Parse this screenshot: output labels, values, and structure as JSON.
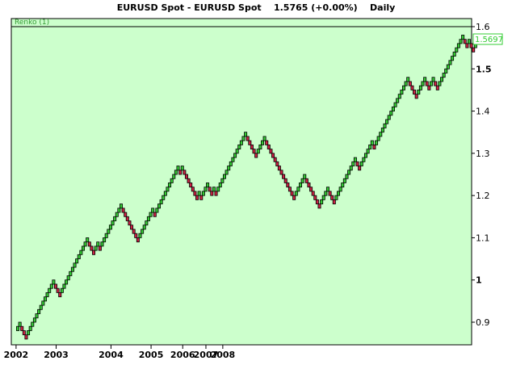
{
  "header": {
    "instrument": "EURUSD Spot - EURUSD Spot",
    "last_value": "1.5765 (+0.00%)",
    "period": "Daily"
  },
  "colors": {
    "plot_background": "#ccffcc",
    "up_brick": "#33cc33",
    "down_brick": "#cc2244",
    "brick_outline": "#000000",
    "last_price_label": "#33cc33"
  },
  "chart_data": {
    "type": "renko",
    "indicator_label": "Renko (1)",
    "brick_size": 0.01,
    "last_price_label": "1.5697",
    "ylim": [
      0.84,
      1.6
    ],
    "y_ticks": [
      {
        "value": 1.6,
        "label": "1.6"
      },
      {
        "value": 1.5,
        "label": "1.5"
      },
      {
        "value": 1.4,
        "label": "1.4"
      },
      {
        "value": 1.3,
        "label": "1.3"
      },
      {
        "value": 1.2,
        "label": "1.2"
      },
      {
        "value": 1.1,
        "label": "1.1"
      },
      {
        "value": 1.0,
        "label": "1"
      },
      {
        "value": 0.9,
        "label": "0.9"
      }
    ],
    "x_ticks": [
      {
        "brick": 0,
        "label": "2002"
      },
      {
        "brick": 19,
        "label": "2003"
      },
      {
        "brick": 45,
        "label": "2004"
      },
      {
        "brick": 64,
        "label": "2005"
      },
      {
        "brick": 79,
        "label": "2006"
      },
      {
        "brick": 90,
        "label": "2007"
      },
      {
        "brick": 98,
        "label": "2008"
      }
    ],
    "bricks": [
      {
        "y": 0.89,
        "dir": "up"
      },
      {
        "y": 0.9,
        "dir": "up"
      },
      {
        "y": 0.89,
        "dir": "down"
      },
      {
        "y": 0.88,
        "dir": "down"
      },
      {
        "y": 0.87,
        "dir": "down"
      },
      {
        "y": 0.88,
        "dir": "up"
      },
      {
        "y": 0.89,
        "dir": "up"
      },
      {
        "y": 0.9,
        "dir": "up"
      },
      {
        "y": 0.91,
        "dir": "up"
      },
      {
        "y": 0.92,
        "dir": "up"
      },
      {
        "y": 0.93,
        "dir": "up"
      },
      {
        "y": 0.94,
        "dir": "up"
      },
      {
        "y": 0.95,
        "dir": "up"
      },
      {
        "y": 0.96,
        "dir": "up"
      },
      {
        "y": 0.97,
        "dir": "up"
      },
      {
        "y": 0.98,
        "dir": "up"
      },
      {
        "y": 0.99,
        "dir": "up"
      },
      {
        "y": 1.0,
        "dir": "up"
      },
      {
        "y": 0.99,
        "dir": "down"
      },
      {
        "y": 0.98,
        "dir": "down"
      },
      {
        "y": 0.97,
        "dir": "down"
      },
      {
        "y": 0.98,
        "dir": "up"
      },
      {
        "y": 0.99,
        "dir": "up"
      },
      {
        "y": 1.0,
        "dir": "up"
      },
      {
        "y": 1.01,
        "dir": "up"
      },
      {
        "y": 1.02,
        "dir": "up"
      },
      {
        "y": 1.03,
        "dir": "up"
      },
      {
        "y": 1.04,
        "dir": "up"
      },
      {
        "y": 1.05,
        "dir": "up"
      },
      {
        "y": 1.06,
        "dir": "up"
      },
      {
        "y": 1.07,
        "dir": "up"
      },
      {
        "y": 1.08,
        "dir": "up"
      },
      {
        "y": 1.09,
        "dir": "up"
      },
      {
        "y": 1.1,
        "dir": "up"
      },
      {
        "y": 1.09,
        "dir": "down"
      },
      {
        "y": 1.08,
        "dir": "down"
      },
      {
        "y": 1.07,
        "dir": "down"
      },
      {
        "y": 1.08,
        "dir": "up"
      },
      {
        "y": 1.09,
        "dir": "up"
      },
      {
        "y": 1.08,
        "dir": "down"
      },
      {
        "y": 1.09,
        "dir": "up"
      },
      {
        "y": 1.1,
        "dir": "up"
      },
      {
        "y": 1.11,
        "dir": "up"
      },
      {
        "y": 1.12,
        "dir": "up"
      },
      {
        "y": 1.13,
        "dir": "up"
      },
      {
        "y": 1.14,
        "dir": "up"
      },
      {
        "y": 1.15,
        "dir": "up"
      },
      {
        "y": 1.16,
        "dir": "up"
      },
      {
        "y": 1.17,
        "dir": "up"
      },
      {
        "y": 1.18,
        "dir": "up"
      },
      {
        "y": 1.17,
        "dir": "down"
      },
      {
        "y": 1.16,
        "dir": "down"
      },
      {
        "y": 1.15,
        "dir": "down"
      },
      {
        "y": 1.14,
        "dir": "down"
      },
      {
        "y": 1.13,
        "dir": "down"
      },
      {
        "y": 1.12,
        "dir": "down"
      },
      {
        "y": 1.11,
        "dir": "down"
      },
      {
        "y": 1.1,
        "dir": "down"
      },
      {
        "y": 1.11,
        "dir": "up"
      },
      {
        "y": 1.12,
        "dir": "up"
      },
      {
        "y": 1.13,
        "dir": "up"
      },
      {
        "y": 1.14,
        "dir": "up"
      },
      {
        "y": 1.15,
        "dir": "up"
      },
      {
        "y": 1.16,
        "dir": "up"
      },
      {
        "y": 1.17,
        "dir": "up"
      },
      {
        "y": 1.16,
        "dir": "down"
      },
      {
        "y": 1.17,
        "dir": "up"
      },
      {
        "y": 1.18,
        "dir": "up"
      },
      {
        "y": 1.19,
        "dir": "up"
      },
      {
        "y": 1.2,
        "dir": "up"
      },
      {
        "y": 1.21,
        "dir": "up"
      },
      {
        "y": 1.22,
        "dir": "up"
      },
      {
        "y": 1.23,
        "dir": "up"
      },
      {
        "y": 1.24,
        "dir": "up"
      },
      {
        "y": 1.25,
        "dir": "up"
      },
      {
        "y": 1.26,
        "dir": "up"
      },
      {
        "y": 1.27,
        "dir": "up"
      },
      {
        "y": 1.26,
        "dir": "down"
      },
      {
        "y": 1.27,
        "dir": "up"
      },
      {
        "y": 1.26,
        "dir": "down"
      },
      {
        "y": 1.25,
        "dir": "down"
      },
      {
        "y": 1.24,
        "dir": "down"
      },
      {
        "y": 1.23,
        "dir": "down"
      },
      {
        "y": 1.22,
        "dir": "down"
      },
      {
        "y": 1.21,
        "dir": "down"
      },
      {
        "y": 1.2,
        "dir": "down"
      },
      {
        "y": 1.21,
        "dir": "up"
      },
      {
        "y": 1.2,
        "dir": "down"
      },
      {
        "y": 1.21,
        "dir": "up"
      },
      {
        "y": 1.22,
        "dir": "up"
      },
      {
        "y": 1.23,
        "dir": "up"
      },
      {
        "y": 1.22,
        "dir": "down"
      },
      {
        "y": 1.21,
        "dir": "down"
      },
      {
        "y": 1.22,
        "dir": "up"
      },
      {
        "y": 1.21,
        "dir": "down"
      },
      {
        "y": 1.22,
        "dir": "up"
      },
      {
        "y": 1.23,
        "dir": "up"
      },
      {
        "y": 1.24,
        "dir": "up"
      },
      {
        "y": 1.25,
        "dir": "up"
      },
      {
        "y": 1.26,
        "dir": "up"
      },
      {
        "y": 1.27,
        "dir": "up"
      },
      {
        "y": 1.28,
        "dir": "up"
      },
      {
        "y": 1.29,
        "dir": "up"
      },
      {
        "y": 1.3,
        "dir": "up"
      },
      {
        "y": 1.31,
        "dir": "up"
      },
      {
        "y": 1.32,
        "dir": "up"
      },
      {
        "y": 1.33,
        "dir": "up"
      },
      {
        "y": 1.34,
        "dir": "up"
      },
      {
        "y": 1.35,
        "dir": "up"
      },
      {
        "y": 1.34,
        "dir": "down"
      },
      {
        "y": 1.33,
        "dir": "down"
      },
      {
        "y": 1.32,
        "dir": "down"
      },
      {
        "y": 1.31,
        "dir": "down"
      },
      {
        "y": 1.3,
        "dir": "down"
      },
      {
        "y": 1.31,
        "dir": "up"
      },
      {
        "y": 1.32,
        "dir": "up"
      },
      {
        "y": 1.33,
        "dir": "up"
      },
      {
        "y": 1.34,
        "dir": "up"
      },
      {
        "y": 1.33,
        "dir": "down"
      },
      {
        "y": 1.32,
        "dir": "down"
      },
      {
        "y": 1.31,
        "dir": "down"
      },
      {
        "y": 1.3,
        "dir": "down"
      },
      {
        "y": 1.29,
        "dir": "down"
      },
      {
        "y": 1.28,
        "dir": "down"
      },
      {
        "y": 1.27,
        "dir": "down"
      },
      {
        "y": 1.26,
        "dir": "down"
      },
      {
        "y": 1.25,
        "dir": "down"
      },
      {
        "y": 1.24,
        "dir": "down"
      },
      {
        "y": 1.23,
        "dir": "down"
      },
      {
        "y": 1.22,
        "dir": "down"
      },
      {
        "y": 1.21,
        "dir": "down"
      },
      {
        "y": 1.2,
        "dir": "down"
      },
      {
        "y": 1.21,
        "dir": "up"
      },
      {
        "y": 1.22,
        "dir": "up"
      },
      {
        "y": 1.23,
        "dir": "up"
      },
      {
        "y": 1.24,
        "dir": "up"
      },
      {
        "y": 1.25,
        "dir": "up"
      },
      {
        "y": 1.24,
        "dir": "down"
      },
      {
        "y": 1.23,
        "dir": "down"
      },
      {
        "y": 1.22,
        "dir": "down"
      },
      {
        "y": 1.21,
        "dir": "down"
      },
      {
        "y": 1.2,
        "dir": "down"
      },
      {
        "y": 1.19,
        "dir": "down"
      },
      {
        "y": 1.18,
        "dir": "down"
      },
      {
        "y": 1.19,
        "dir": "up"
      },
      {
        "y": 1.2,
        "dir": "up"
      },
      {
        "y": 1.21,
        "dir": "up"
      },
      {
        "y": 1.22,
        "dir": "up"
      },
      {
        "y": 1.21,
        "dir": "down"
      },
      {
        "y": 1.2,
        "dir": "down"
      },
      {
        "y": 1.19,
        "dir": "down"
      },
      {
        "y": 1.2,
        "dir": "up"
      },
      {
        "y": 1.21,
        "dir": "up"
      },
      {
        "y": 1.22,
        "dir": "up"
      },
      {
        "y": 1.23,
        "dir": "up"
      },
      {
        "y": 1.24,
        "dir": "up"
      },
      {
        "y": 1.25,
        "dir": "up"
      },
      {
        "y": 1.26,
        "dir": "up"
      },
      {
        "y": 1.27,
        "dir": "up"
      },
      {
        "y": 1.28,
        "dir": "up"
      },
      {
        "y": 1.29,
        "dir": "up"
      },
      {
        "y": 1.28,
        "dir": "down"
      },
      {
        "y": 1.27,
        "dir": "down"
      },
      {
        "y": 1.28,
        "dir": "up"
      },
      {
        "y": 1.29,
        "dir": "up"
      },
      {
        "y": 1.3,
        "dir": "up"
      },
      {
        "y": 1.31,
        "dir": "up"
      },
      {
        "y": 1.32,
        "dir": "up"
      },
      {
        "y": 1.33,
        "dir": "up"
      },
      {
        "y": 1.32,
        "dir": "down"
      },
      {
        "y": 1.33,
        "dir": "up"
      },
      {
        "y": 1.34,
        "dir": "up"
      },
      {
        "y": 1.35,
        "dir": "up"
      },
      {
        "y": 1.36,
        "dir": "up"
      },
      {
        "y": 1.37,
        "dir": "up"
      },
      {
        "y": 1.38,
        "dir": "up"
      },
      {
        "y": 1.39,
        "dir": "up"
      },
      {
        "y": 1.4,
        "dir": "up"
      },
      {
        "y": 1.41,
        "dir": "up"
      },
      {
        "y": 1.42,
        "dir": "up"
      },
      {
        "y": 1.43,
        "dir": "up"
      },
      {
        "y": 1.44,
        "dir": "up"
      },
      {
        "y": 1.45,
        "dir": "up"
      },
      {
        "y": 1.46,
        "dir": "up"
      },
      {
        "y": 1.47,
        "dir": "up"
      },
      {
        "y": 1.48,
        "dir": "up"
      },
      {
        "y": 1.47,
        "dir": "down"
      },
      {
        "y": 1.46,
        "dir": "down"
      },
      {
        "y": 1.45,
        "dir": "down"
      },
      {
        "y": 1.44,
        "dir": "down"
      },
      {
        "y": 1.45,
        "dir": "up"
      },
      {
        "y": 1.46,
        "dir": "up"
      },
      {
        "y": 1.47,
        "dir": "up"
      },
      {
        "y": 1.48,
        "dir": "up"
      },
      {
        "y": 1.47,
        "dir": "down"
      },
      {
        "y": 1.46,
        "dir": "down"
      },
      {
        "y": 1.47,
        "dir": "up"
      },
      {
        "y": 1.48,
        "dir": "up"
      },
      {
        "y": 1.47,
        "dir": "down"
      },
      {
        "y": 1.46,
        "dir": "down"
      },
      {
        "y": 1.47,
        "dir": "up"
      },
      {
        "y": 1.48,
        "dir": "up"
      },
      {
        "y": 1.49,
        "dir": "up"
      },
      {
        "y": 1.5,
        "dir": "up"
      },
      {
        "y": 1.51,
        "dir": "up"
      },
      {
        "y": 1.52,
        "dir": "up"
      },
      {
        "y": 1.53,
        "dir": "up"
      },
      {
        "y": 1.54,
        "dir": "up"
      },
      {
        "y": 1.55,
        "dir": "up"
      },
      {
        "y": 1.56,
        "dir": "up"
      },
      {
        "y": 1.57,
        "dir": "up"
      },
      {
        "y": 1.58,
        "dir": "up"
      },
      {
        "y": 1.57,
        "dir": "down"
      },
      {
        "y": 1.56,
        "dir": "down"
      },
      {
        "y": 1.57,
        "dir": "up"
      },
      {
        "y": 1.56,
        "dir": "down"
      },
      {
        "y": 1.55,
        "dir": "down"
      },
      {
        "y": 1.56,
        "dir": "up"
      },
      {
        "y": 1.57,
        "dir": "up"
      }
    ]
  }
}
